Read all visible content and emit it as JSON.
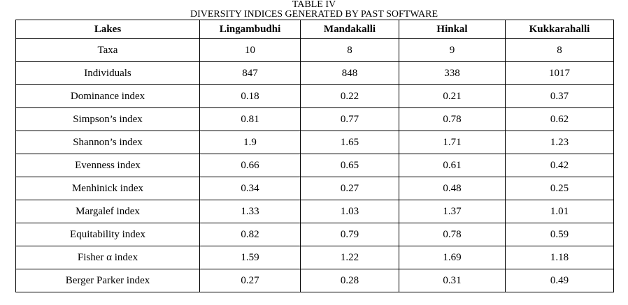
{
  "caption": {
    "number": "TABLE IV",
    "title": "DIVERSITY INDICES GENERATED BY PAST SOFTWARE"
  },
  "table": {
    "headers": [
      "Lakes",
      "Lingambudhi",
      "Mandakalli",
      "Hinkal",
      "Kukkarahalli"
    ],
    "rows": [
      [
        "Taxa",
        "10",
        "8",
        "9",
        "8"
      ],
      [
        "Individuals",
        "847",
        "848",
        "338",
        "1017"
      ],
      [
        "Dominance index",
        "0.18",
        "0.22",
        "0.21",
        "0.37"
      ],
      [
        "Simpson’s index",
        "0.81",
        "0.77",
        "0.78",
        "0.62"
      ],
      [
        "Shannon’s index",
        "1.9",
        "1.65",
        "1.71",
        "1.23"
      ],
      [
        "Evenness index",
        "0.66",
        "0.65",
        "0.61",
        "0.42"
      ],
      [
        "Menhinick index",
        "0.34",
        "0.27",
        "0.48",
        "0.25"
      ],
      [
        "Margalef index",
        "1.33",
        "1.03",
        "1.37",
        "1.01"
      ],
      [
        "Equitability index",
        "0.82",
        "0.79",
        "0.78",
        "0.59"
      ],
      [
        "Fisher α index",
        "1.59",
        "1.22",
        "1.69",
        "1.18"
      ],
      [
        "Berger Parker index",
        "0.27",
        "0.28",
        "0.31",
        "0.49"
      ]
    ]
  }
}
